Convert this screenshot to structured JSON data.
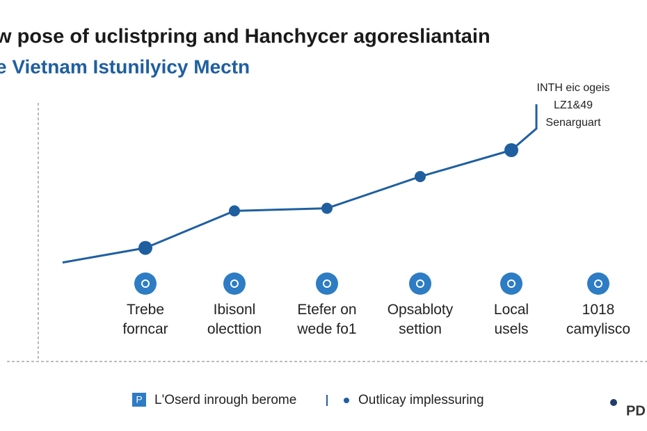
{
  "chart_data": {
    "type": "line",
    "title": "w pose of uclistpring and Hanchycer agoresliantain",
    "subtitle": "e Vietnam Istunilyicy Mectn",
    "annotations": [
      "INTH eic ogeis\nLZ1&49\nSenarguart",
      "L'Oserd inrough berome"
    ],
    "categories": [
      "Trebe\nforncar",
      "Ibisonl\nolecttion",
      "Etefer on\nwede fo1",
      "Opsabloty\nsettion",
      "Local\nusels",
      "1018\ncamylisco"
    ],
    "series": [
      {
        "name": "Outlicay implessuring",
        "color": "#1f5fa0",
        "values": [
          43,
          57,
          58,
          70,
          80,
          null
        ]
      }
    ],
    "ylim": [
      0,
      100
    ],
    "watermark": "PD"
  }
}
